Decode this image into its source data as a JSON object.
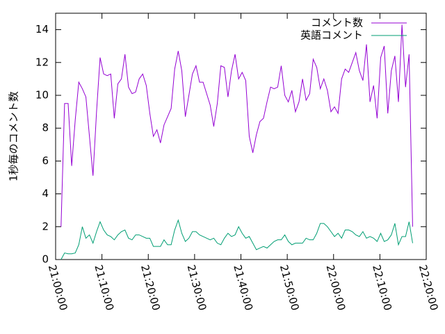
{
  "chart_data": {
    "type": "line",
    "y_label": "1秒毎のコメント数",
    "x": [
      "21:01:10",
      "21:01:56",
      "21:02:42",
      "21:03:28",
      "21:04:14",
      "21:05:00",
      "21:05:46",
      "21:06:32",
      "21:07:18",
      "21:08:04",
      "21:08:50",
      "21:09:36",
      "21:10:22",
      "21:11:08",
      "21:11:54",
      "21:12:40",
      "21:13:26",
      "21:14:12",
      "21:14:58",
      "21:15:44",
      "21:16:30",
      "21:17:16",
      "21:18:02",
      "21:18:48",
      "21:19:34",
      "21:20:20",
      "21:21:06",
      "21:21:52",
      "21:22:38",
      "21:23:24",
      "21:24:10",
      "21:24:56",
      "21:25:42",
      "21:26:28",
      "21:27:14",
      "21:28:00",
      "21:28:46",
      "21:29:32",
      "21:30:18",
      "21:31:04",
      "21:31:50",
      "21:32:36",
      "21:33:22",
      "21:34:08",
      "21:34:54",
      "21:35:40",
      "21:36:26",
      "21:37:12",
      "21:37:58",
      "21:38:44",
      "21:39:30",
      "21:40:16",
      "21:41:02",
      "21:41:48",
      "21:42:34",
      "21:43:20",
      "21:44:06",
      "21:44:52",
      "21:45:38",
      "21:46:24",
      "21:47:10",
      "21:47:56",
      "21:48:42",
      "21:49:28",
      "21:50:14",
      "21:51:00",
      "21:51:46",
      "21:52:32",
      "21:53:18",
      "21:54:04",
      "21:54:50",
      "21:55:36",
      "21:56:22",
      "21:57:08",
      "21:57:54",
      "21:58:40",
      "21:59:26",
      "22:00:12",
      "22:00:58",
      "22:01:44",
      "22:02:30",
      "22:03:16",
      "22:04:02",
      "22:04:48",
      "22:05:34",
      "22:06:20",
      "22:07:06",
      "22:07:52",
      "22:08:38",
      "22:09:24",
      "22:10:10",
      "22:10:56",
      "22:11:42",
      "22:12:28",
      "22:13:14",
      "22:14:00",
      "22:14:46",
      "22:15:32",
      "22:16:18",
      "22:17:04"
    ],
    "series": [
      {
        "name": "コメント数",
        "color": "#9400d3",
        "values": [
          2,
          9.5,
          9.5,
          5.7,
          8.5,
          10.8,
          10.4,
          9.9,
          7.5,
          5.1,
          9,
          12.3,
          11.3,
          11.2,
          11.3,
          8.6,
          10.7,
          11,
          12.5,
          10.5,
          10.1,
          10.2,
          11,
          11.3,
          10.6,
          8.9,
          7.5,
          7.9,
          7.1,
          8.2,
          8.7,
          9.2,
          11.6,
          12.7,
          11.5,
          8.7,
          10,
          11.3,
          11.8,
          10.8,
          10.8,
          10.1,
          9.4,
          8.1,
          9.5,
          11.8,
          11.7,
          9.9,
          11.5,
          12.5,
          11,
          11.4,
          10.9,
          7.5,
          6.5,
          7.6,
          8.4,
          8.6,
          9.6,
          10.5,
          10.4,
          10.5,
          11.8,
          10,
          9.6,
          10.3,
          9,
          9.6,
          11,
          9.7,
          10.1,
          12.2,
          11.7,
          10.4,
          11,
          10.3,
          9,
          9.3,
          8.9,
          11,
          11.6,
          11.4,
          12,
          12.6,
          11.5,
          10.9,
          13.1,
          9.6,
          10.6,
          8.6,
          12.3,
          13,
          8.9,
          11.5,
          12.4,
          9.6,
          14.3,
          10.5,
          12.5,
          2
        ]
      },
      {
        "name": "英語コメント",
        "color": "#009e73",
        "values": [
          0,
          0.4,
          0.35,
          0.35,
          0.4,
          0.9,
          2,
          1.3,
          1.5,
          1,
          1.7,
          2.3,
          1.8,
          1.5,
          1.4,
          1.2,
          1.5,
          1.7,
          1.8,
          1.3,
          1.2,
          1.5,
          1.5,
          1.4,
          1.3,
          1.3,
          0.8,
          0.8,
          0.8,
          1.2,
          0.9,
          0.9,
          1.8,
          2.4,
          1.6,
          1.1,
          1.3,
          1.7,
          1.7,
          1.5,
          1.4,
          1.3,
          1.2,
          1.3,
          1,
          0.9,
          1.3,
          1.6,
          1.4,
          1.5,
          2,
          1.6,
          1.3,
          1.4,
          1,
          0.6,
          0.7,
          0.8,
          0.7,
          0.9,
          1.1,
          1.2,
          1.2,
          1.5,
          1.1,
          0.9,
          1,
          1,
          1,
          1.3,
          1.2,
          1.2,
          1.6,
          2.2,
          2.2,
          2,
          1.7,
          1.4,
          1.6,
          1.3,
          1.8,
          1.8,
          1.7,
          1.5,
          1.4,
          1.7,
          1.3,
          1.4,
          1.3,
          1.1,
          1.6,
          1.1,
          1.2,
          1.5,
          2.2,
          0.9,
          1.4,
          1.4,
          2.3,
          1
        ]
      }
    ],
    "xlim": [
      "21:00:00",
      "22:20:00"
    ],
    "xticks": [
      "21:00:00",
      "21:10:00",
      "21:20:00",
      "21:30:00",
      "21:40:00",
      "21:50:00",
      "22:00:00",
      "22:10:00",
      "22:20:00"
    ],
    "ylim": [
      0,
      15
    ],
    "yticks": [
      0,
      2,
      4,
      6,
      8,
      10,
      12,
      14
    ],
    "legend": "top-right",
    "grid": false
  }
}
